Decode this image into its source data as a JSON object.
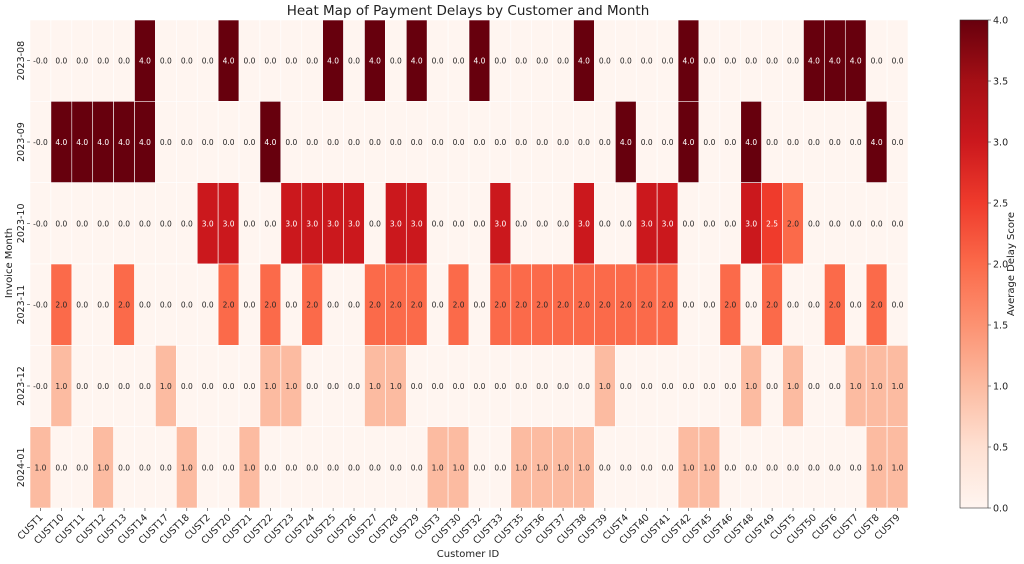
{
  "chart_data": {
    "type": "heatmap",
    "title": "Heat Map of Payment Delays by Customer and Month",
    "xlabel": "Customer ID",
    "ylabel": "Invoice Month",
    "colorbar_label": "Average Delay Score",
    "color_range": [
      0.0,
      4.0
    ],
    "colorbar_ticks": [
      "0.0",
      "0.5",
      "1.0",
      "1.5",
      "2.0",
      "2.5",
      "3.0",
      "3.5",
      "4.0"
    ],
    "colormap": "Reds",
    "gridlines": true,
    "categories_x": [
      "CUST1",
      "CUST10",
      "CUST11",
      "CUST12",
      "CUST13",
      "CUST14",
      "CUST17",
      "CUST18",
      "CUST2",
      "CUST20",
      "CUST21",
      "CUST22",
      "CUST23",
      "CUST24",
      "CUST25",
      "CUST26",
      "CUST27",
      "CUST28",
      "CUST29",
      "CUST3",
      "CUST30",
      "CUST32",
      "CUST33",
      "CUST35",
      "CUST36",
      "CUST37",
      "CUST38",
      "CUST39",
      "CUST4",
      "CUST40",
      "CUST41",
      "CUST42",
      "CUST45",
      "CUST46",
      "CUST48",
      "CUST49",
      "CUST5",
      "CUST50",
      "CUST6",
      "CUST7",
      "CUST8",
      "CUST9"
    ],
    "categories_y": [
      "2023-08",
      "2023-09",
      "2023-10",
      "2023-11",
      "2023-12",
      "2024-01"
    ],
    "values": [
      [
        0,
        0,
        0,
        0,
        0,
        4,
        0,
        0,
        0,
        4,
        0,
        0,
        0,
        0,
        4,
        0,
        4,
        0,
        4,
        0,
        0,
        4,
        0,
        0,
        0,
        0,
        4,
        0,
        0,
        0,
        0,
        4,
        0,
        0,
        0,
        0,
        0,
        4,
        4,
        4,
        0,
        0
      ],
      [
        0,
        4,
        4,
        4,
        4,
        4,
        0,
        0,
        0,
        0,
        0,
        4,
        0,
        0,
        0,
        0,
        0,
        0,
        0,
        0,
        0,
        0,
        0,
        0,
        0,
        0,
        0,
        0,
        4,
        0,
        0,
        4,
        0,
        0,
        4,
        0,
        0,
        0,
        0,
        0,
        4,
        0
      ],
      [
        0,
        0,
        0,
        0,
        0,
        0,
        0,
        0,
        3,
        3,
        0,
        0,
        3,
        3,
        3,
        3,
        0,
        3,
        3,
        0,
        0,
        0,
        3,
        0,
        0,
        0,
        3,
        0,
        0,
        3,
        3,
        0,
        0,
        0,
        3,
        2.5,
        2,
        0,
        0,
        0,
        0,
        0
      ],
      [
        0,
        2,
        0,
        0,
        2,
        0,
        0,
        0,
        0,
        2,
        0,
        2,
        0,
        2,
        0,
        0,
        2,
        2,
        2,
        0,
        2,
        0,
        2,
        2,
        2,
        2,
        2,
        2,
        2,
        2,
        2,
        0,
        0,
        2,
        0,
        2,
        0,
        0,
        2,
        0,
        2,
        0
      ],
      [
        0,
        1,
        0,
        0,
        0,
        0,
        1,
        0,
        0,
        0,
        0,
        1,
        1,
        0,
        0,
        0,
        1,
        1,
        0,
        0,
        0,
        0,
        0,
        0,
        0,
        0,
        0,
        1,
        0,
        0,
        0,
        0,
        0,
        0,
        1,
        0,
        1,
        0,
        0,
        1,
        1,
        1
      ],
      [
        1,
        0,
        0,
        1,
        0,
        0,
        0,
        1,
        0,
        0,
        1,
        0,
        0,
        0,
        0,
        0,
        0,
        0,
        0,
        1,
        1,
        0,
        0,
        1,
        1,
        1,
        1,
        0,
        0,
        0,
        0,
        1,
        1,
        0,
        0,
        0,
        0,
        0,
        0,
        0,
        1,
        1
      ]
    ]
  }
}
